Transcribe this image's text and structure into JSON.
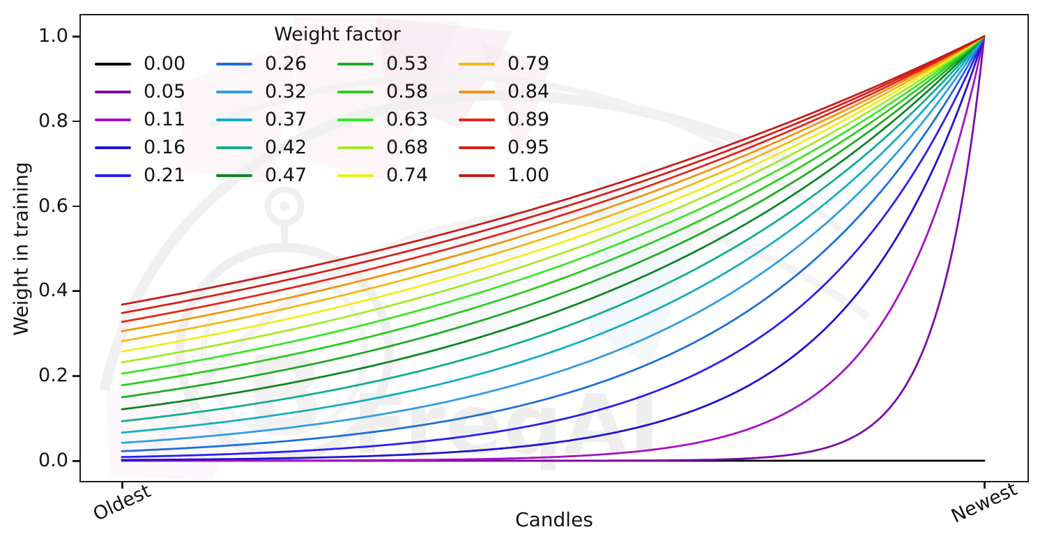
{
  "figure": {
    "watermark_text": "FreqAI",
    "btc_symbol": "B",
    "background": "#ffffff"
  },
  "axes": {
    "ylabel": "Weight in training",
    "xlabel": "Candles",
    "ylim": [
      0.0,
      1.0
    ],
    "yticks": [
      {
        "label": "1.0",
        "value": 1.0
      },
      {
        "label": "0.8",
        "value": 0.8
      },
      {
        "label": "0.6",
        "value": 0.6
      },
      {
        "label": "0.4",
        "value": 0.4
      },
      {
        "label": "0.2",
        "value": 0.2
      },
      {
        "label": "0.0",
        "value": 0.0
      }
    ],
    "xticks": [
      {
        "label": "Oldest",
        "pos": 0.0
      },
      {
        "label": "Newest",
        "pos": 1.0
      }
    ]
  },
  "legend": {
    "title": "Weight factor",
    "columns": 4,
    "rows": 5
  },
  "chart_data": {
    "type": "line",
    "title": "",
    "xlabel": "Candles",
    "ylabel": "Weight in training",
    "legend_title": "Weight factor",
    "ylim": [
      0.0,
      1.0
    ],
    "x_axis": {
      "type": "normalized-range",
      "start_label": "Oldest",
      "end_label": "Newest",
      "range": [
        0.0,
        1.0
      ]
    },
    "grid": false,
    "legend_position": "upper-left, 4 columns, no frame",
    "formula": "weight(x) = exp(-(1 - x) / weight_factor) for x in [0,1]; weight_factor = 0 gives flat 0",
    "series": [
      {
        "name": "0.00",
        "weight_factor": 0.0,
        "color": "#000000",
        "value_at_oldest": 0.0,
        "value_at_newest": 0.0
      },
      {
        "name": "0.05",
        "weight_factor": 0.0526,
        "color": "#7A0BA5",
        "value_at_oldest": 0.0,
        "value_at_newest": 1.0
      },
      {
        "name": "0.11",
        "weight_factor": 0.1053,
        "color": "#A313C4",
        "value_at_oldest": 0.0001,
        "value_at_newest": 1.0
      },
      {
        "name": "0.16",
        "weight_factor": 0.1579,
        "color": "#2113CE",
        "value_at_oldest": 0.0018,
        "value_at_newest": 1.0
      },
      {
        "name": "0.21",
        "weight_factor": 0.2105,
        "color": "#2B1EF2",
        "value_at_oldest": 0.0087,
        "value_at_newest": 1.0
      },
      {
        "name": "0.26",
        "weight_factor": 0.2632,
        "color": "#1C6FD6",
        "value_at_oldest": 0.0224,
        "value_at_newest": 1.0
      },
      {
        "name": "0.32",
        "weight_factor": 0.3158,
        "color": "#2F9DE2",
        "value_at_oldest": 0.0421,
        "value_at_newest": 1.0
      },
      {
        "name": "0.37",
        "weight_factor": 0.3684,
        "color": "#13ADC4",
        "value_at_oldest": 0.0663,
        "value_at_newest": 1.0
      },
      {
        "name": "0.42",
        "weight_factor": 0.4211,
        "color": "#0FAF8B",
        "value_at_oldest": 0.093,
        "value_at_newest": 1.0
      },
      {
        "name": "0.47",
        "weight_factor": 0.4737,
        "color": "#0E8425",
        "value_at_oldest": 0.1211,
        "value_at_newest": 1.0
      },
      {
        "name": "0.53",
        "weight_factor": 0.5263,
        "color": "#1CAD22",
        "value_at_oldest": 0.1496,
        "value_at_newest": 1.0
      },
      {
        "name": "0.58",
        "weight_factor": 0.5789,
        "color": "#2BCC1E",
        "value_at_oldest": 0.1778,
        "value_at_newest": 1.0
      },
      {
        "name": "0.63",
        "weight_factor": 0.6316,
        "color": "#3DE52A",
        "value_at_oldest": 0.2053,
        "value_at_newest": 1.0
      },
      {
        "name": "0.68",
        "weight_factor": 0.6842,
        "color": "#A5E929",
        "value_at_oldest": 0.2319,
        "value_at_newest": 1.0
      },
      {
        "name": "0.74",
        "weight_factor": 0.7368,
        "color": "#EFEF1B",
        "value_at_oldest": 0.2574,
        "value_at_newest": 1.0
      },
      {
        "name": "0.79",
        "weight_factor": 0.7895,
        "color": "#F4B713",
        "value_at_oldest": 0.2817,
        "value_at_newest": 1.0
      },
      {
        "name": "0.84",
        "weight_factor": 0.8421,
        "color": "#F2940F",
        "value_at_oldest": 0.305,
        "value_at_newest": 1.0
      },
      {
        "name": "0.89",
        "weight_factor": 0.8947,
        "color": "#E6251C",
        "value_at_oldest": 0.3271,
        "value_at_newest": 1.0
      },
      {
        "name": "0.95",
        "weight_factor": 0.9474,
        "color": "#D42019",
        "value_at_oldest": 0.348,
        "value_at_newest": 1.0
      },
      {
        "name": "1.00",
        "weight_factor": 1.0,
        "color": "#C11D1B",
        "value_at_oldest": 0.3679,
        "value_at_newest": 1.0
      }
    ]
  }
}
